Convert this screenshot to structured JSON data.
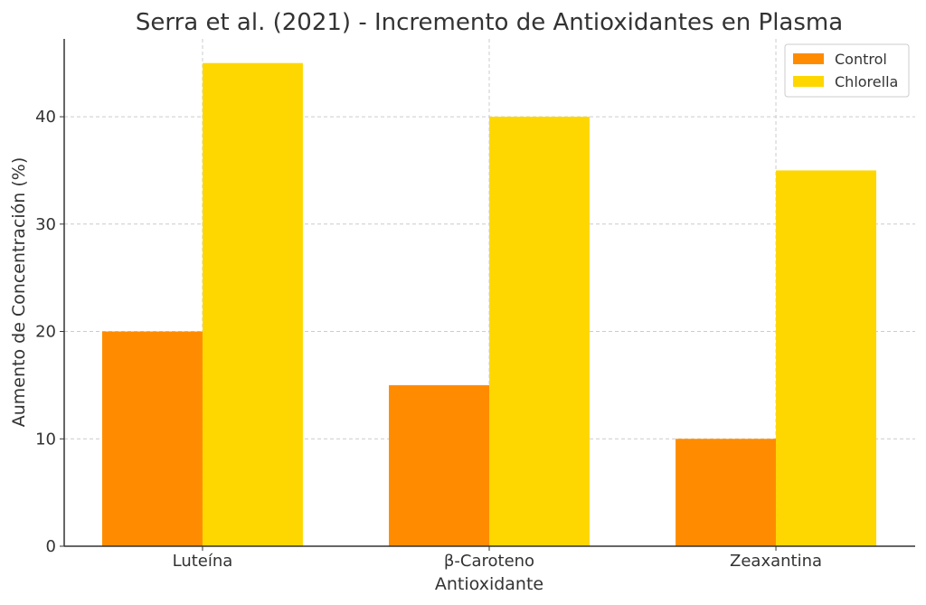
{
  "chart_data": {
    "type": "bar",
    "title": "Serra et al. (2021) - Incremento de Antioxidantes en Plasma",
    "xlabel": "Antioxidante",
    "ylabel": "Aumento de Concentración (%)",
    "categories": [
      "Luteína",
      "β-Caroteno",
      "Zeaxantina"
    ],
    "series": [
      {
        "name": "Control",
        "values": [
          20,
          15,
          10
        ],
        "color": "#FF8C00"
      },
      {
        "name": "Chlorella",
        "values": [
          45,
          40,
          35
        ],
        "color": "#FFD700"
      }
    ],
    "ylim": [
      0,
      47.25
    ],
    "yticks": [
      0,
      10,
      20,
      30,
      40
    ],
    "grid": true,
    "legend_position": "top-right"
  }
}
